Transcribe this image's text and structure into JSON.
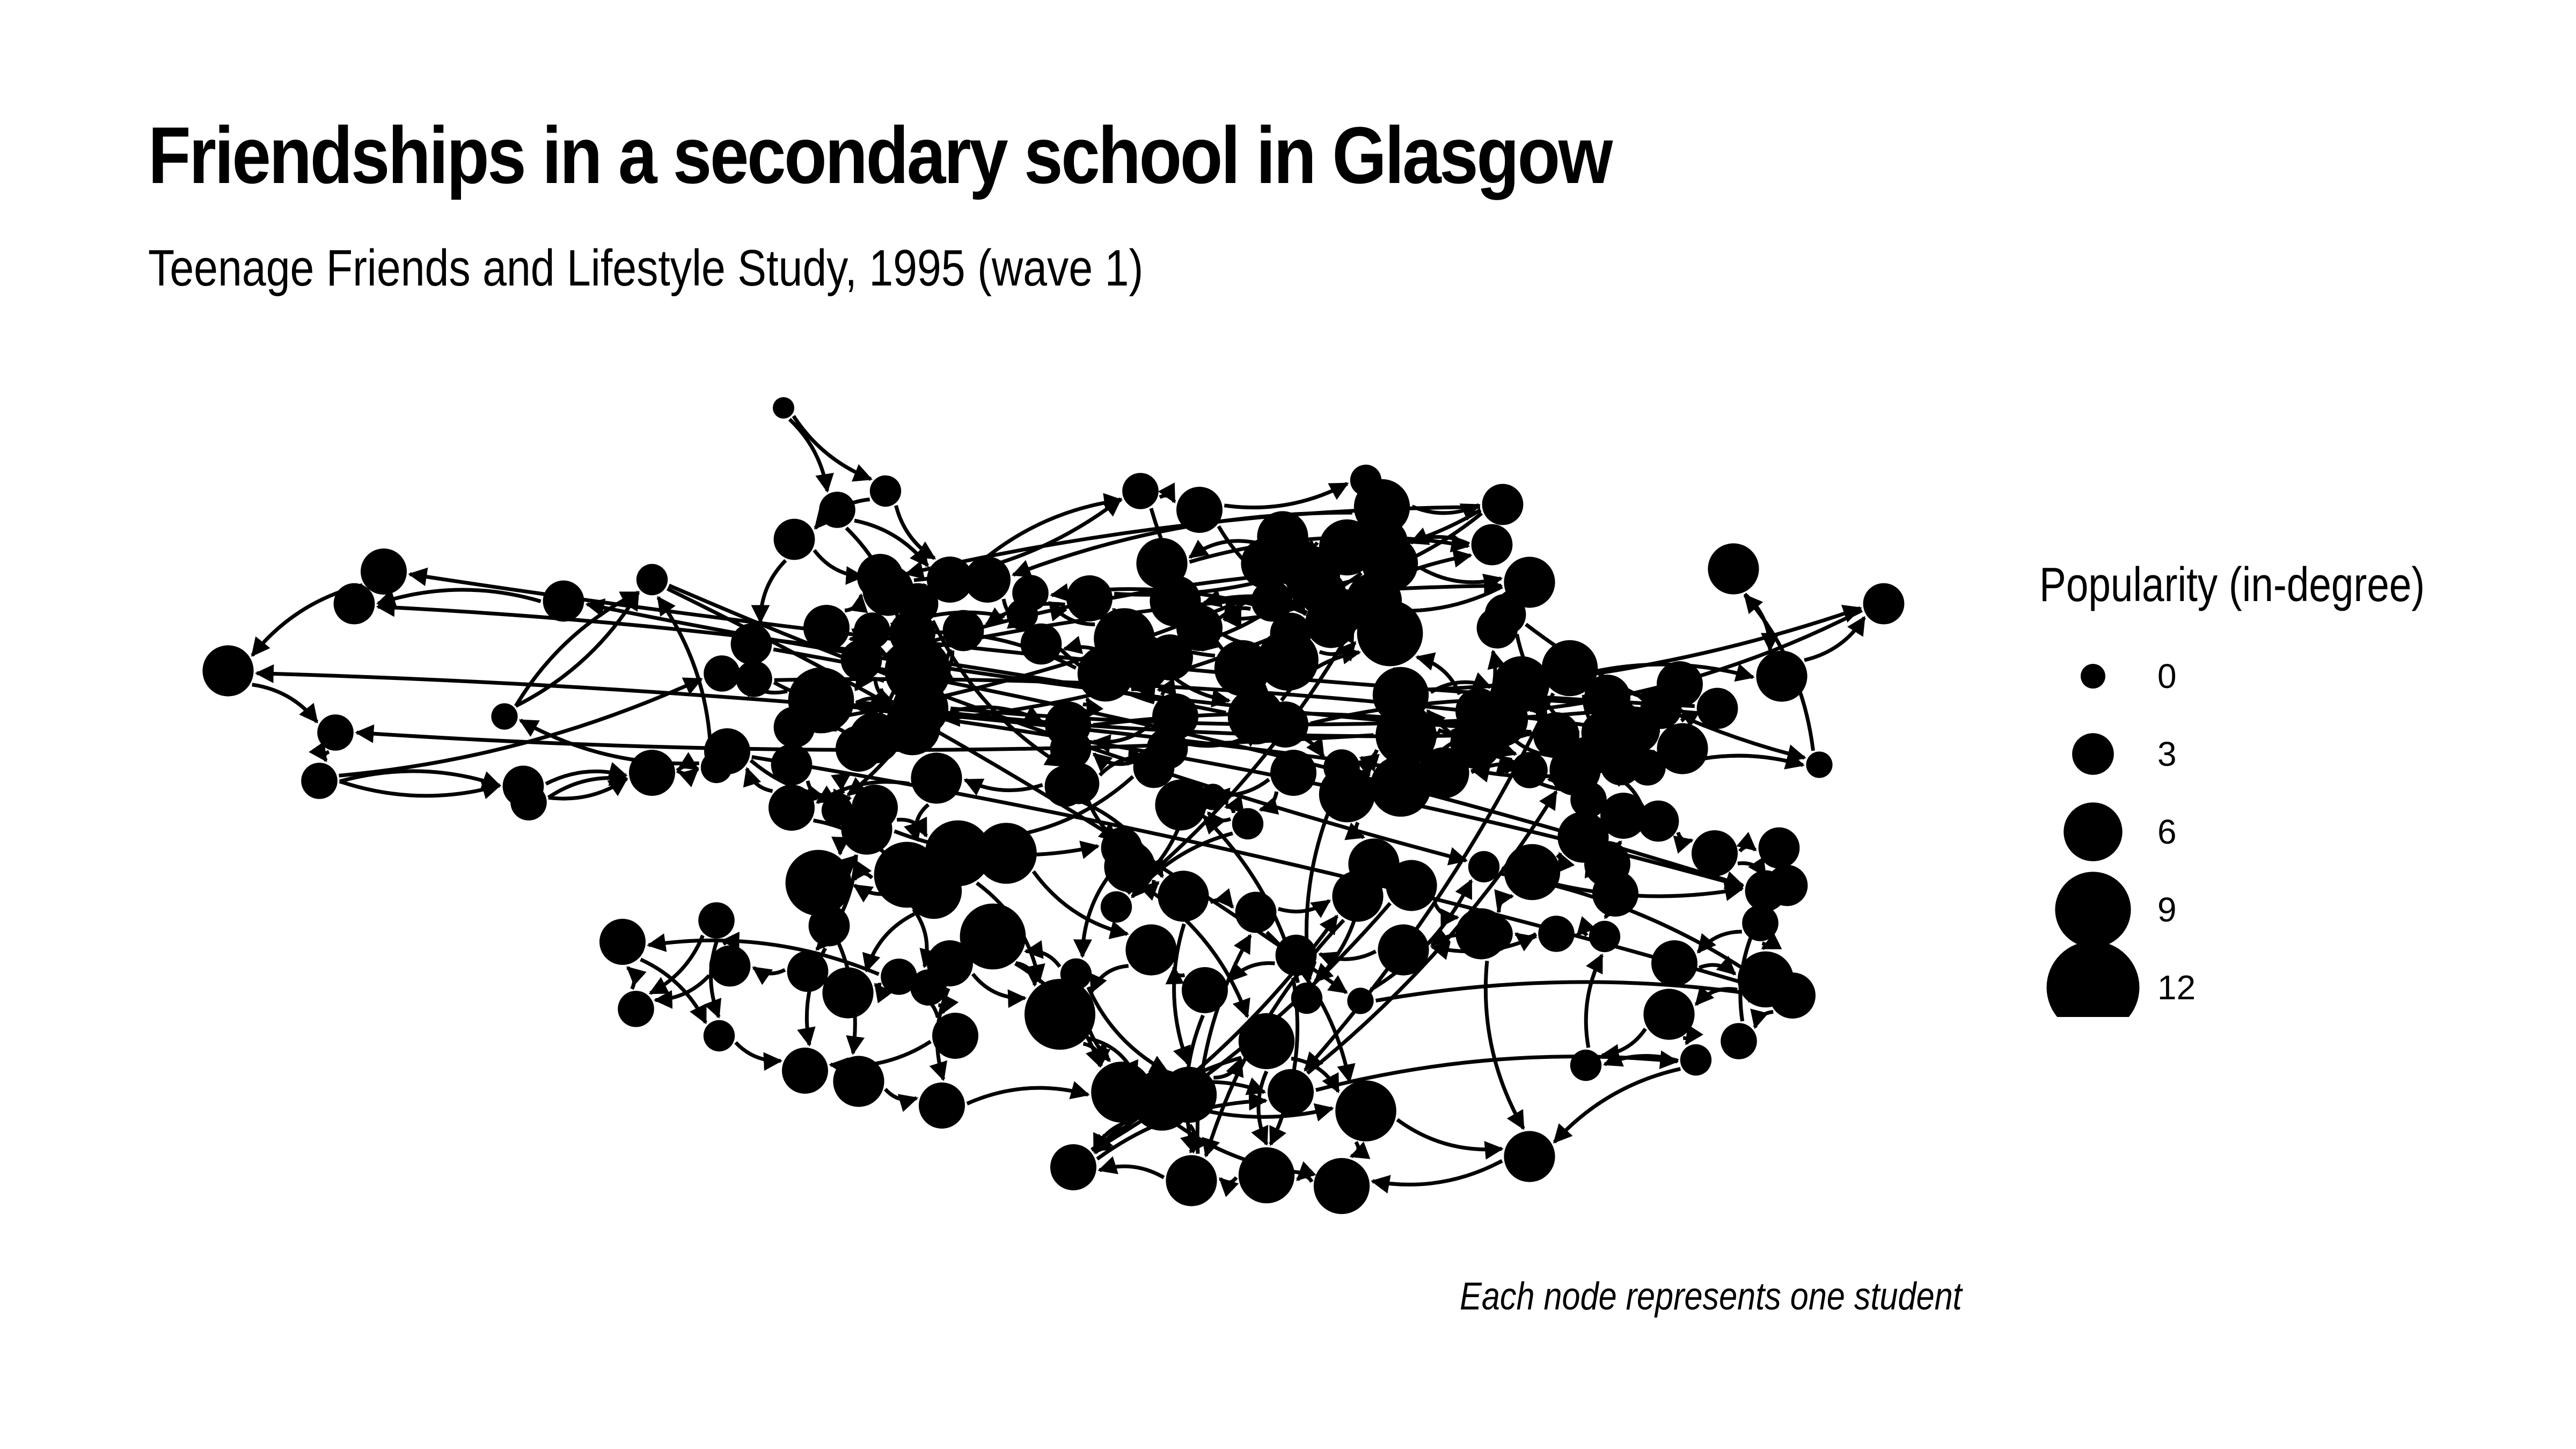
{
  "header": {
    "title": "Friendships in a secondary school in Glasgow",
    "subtitle": "Teenage Friends and Lifestyle Study, 1995 (wave 1)"
  },
  "caption": "Each node represents one student",
  "legend": {
    "title": "Popularity (in-degree)",
    "entries": [
      {
        "label": "0",
        "value": 0
      },
      {
        "label": "3",
        "value": 3
      },
      {
        "label": "6",
        "value": 6
      },
      {
        "label": "9",
        "value": 9
      },
      {
        "label": "12",
        "value": 12
      }
    ]
  },
  "colors": {
    "node": "#000000",
    "edge": "#000000",
    "background": "#ffffff"
  }
}
